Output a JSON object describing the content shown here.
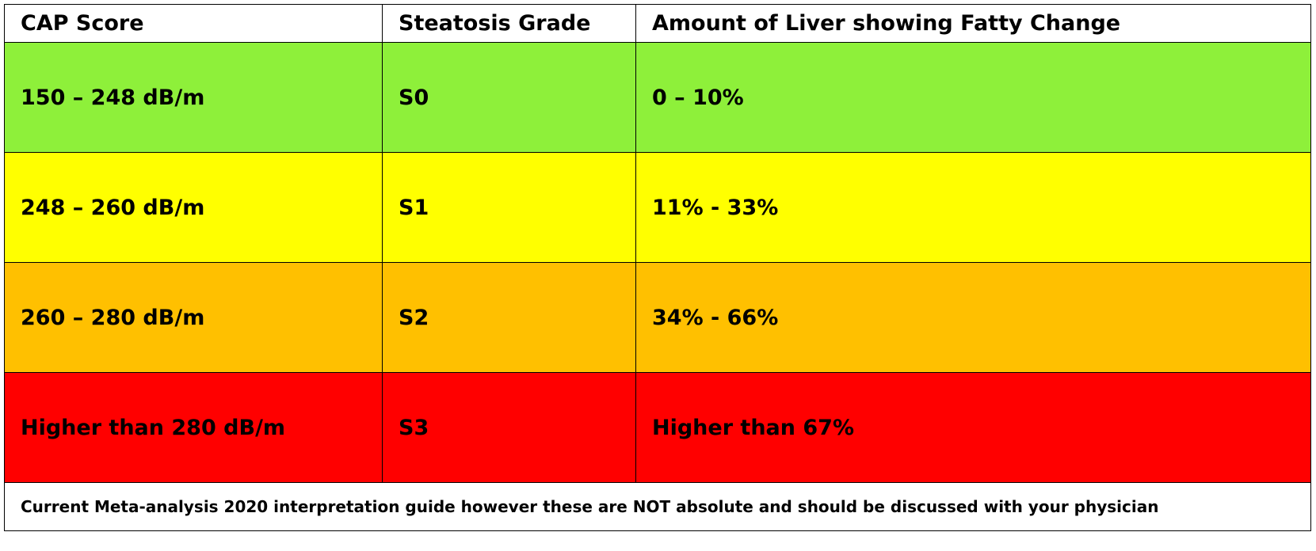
{
  "table": {
    "headers": [
      "CAP Score",
      "Steatosis Grade",
      "Amount of Liver showing Fatty Change"
    ],
    "rows": [
      {
        "cap": "150 – 248 dB/m",
        "grade": "S0",
        "amount": "0 – 10%",
        "color": "#8ef03a"
      },
      {
        "cap": "248 – 260 dB/m",
        "grade": "S1",
        "amount": "11% - 33%",
        "color": "#ffff00"
      },
      {
        "cap": "260 – 280 dB/m",
        "grade": "S2",
        "amount": "34% - 66%",
        "color": "#ffc000"
      },
      {
        "cap": "Higher than 280 dB/m",
        "grade": "S3",
        "amount": "Higher than 67%",
        "color": "#ff0000"
      }
    ],
    "footnote": "Current Meta-analysis 2020 interpretation guide however these are NOT absolute and should be discussed with your physician"
  }
}
